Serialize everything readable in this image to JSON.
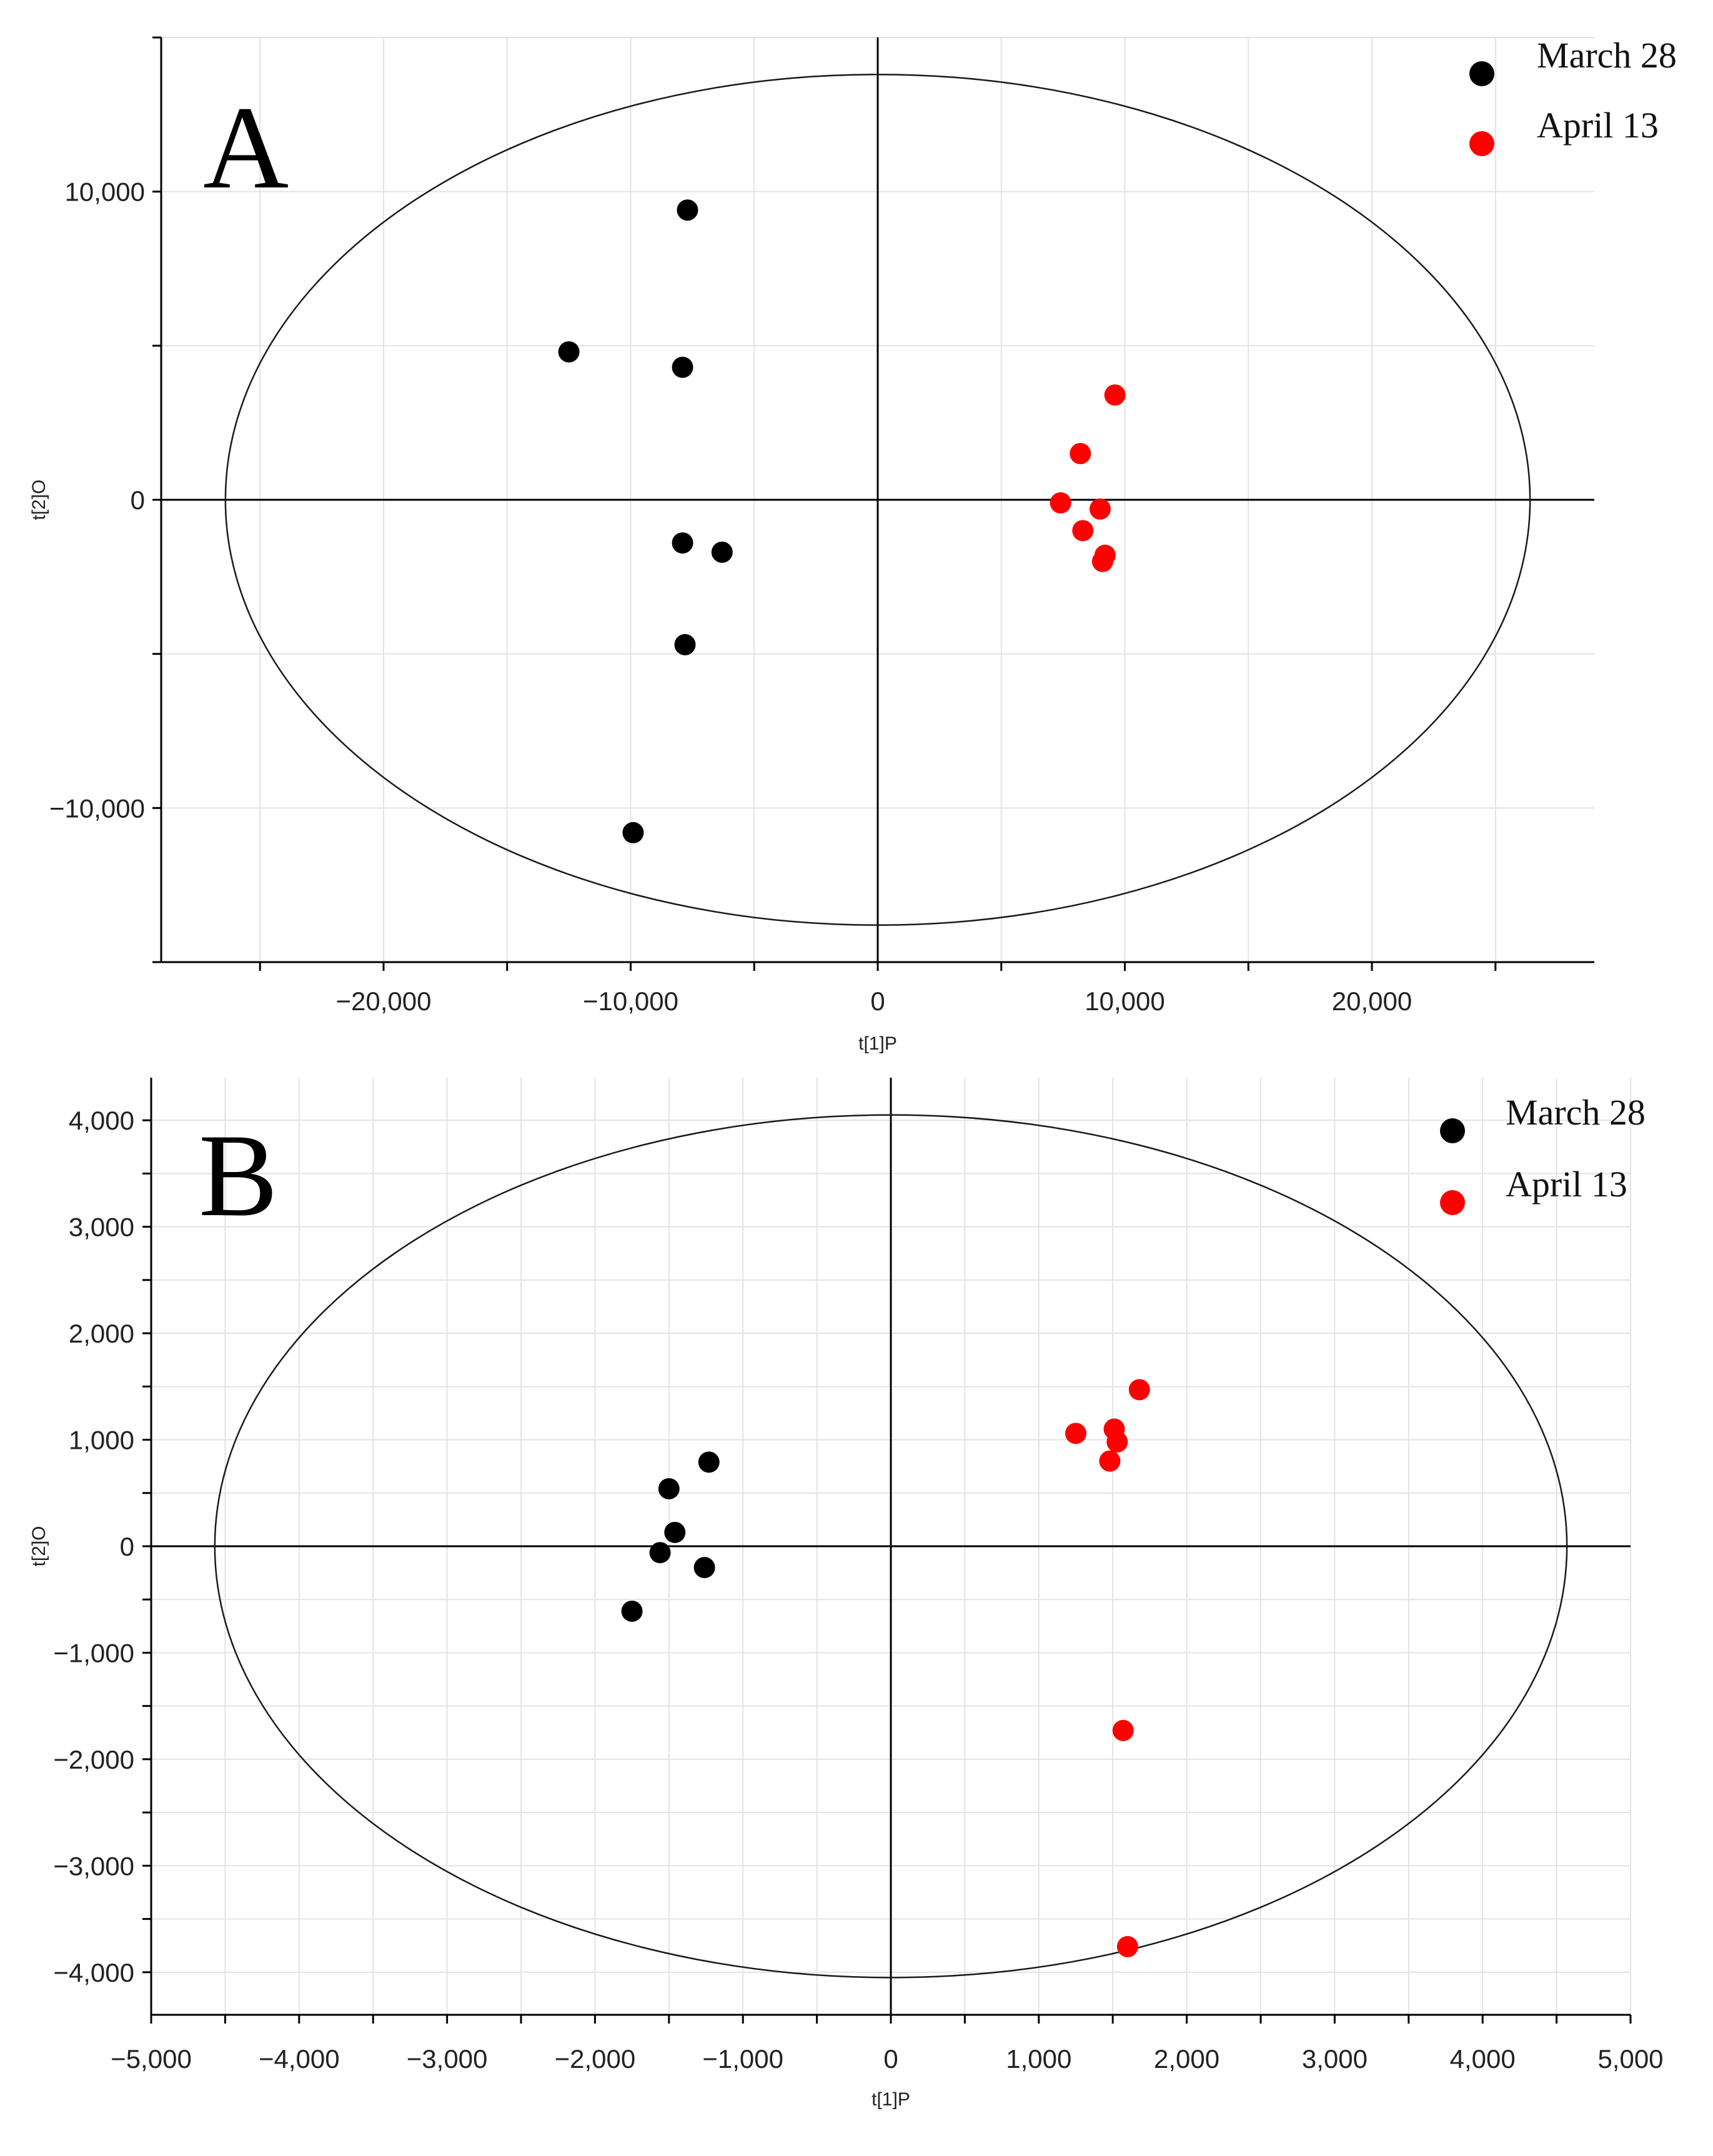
{
  "chart_data": [
    {
      "type": "scatter",
      "panel_label": "A",
      "xlabel": "t[1]P",
      "ylabel": "t[2]O",
      "xlim": [
        -29000,
        29000
      ],
      "ylim": [
        -15000,
        15000
      ],
      "xticks": [
        -20000,
        -10000,
        0,
        10000,
        20000
      ],
      "xtick_labels": [
        "−20,000",
        "−10,000",
        "0",
        "10,000",
        "20,000"
      ],
      "yticks": [
        10000,
        0,
        -10000
      ],
      "ytick_labels": [
        "10,000",
        "0",
        "−10,000"
      ],
      "minor_step": 5000,
      "grid": true,
      "legend_position": "top-right",
      "ellipse": {
        "rx": 26400,
        "ry": 13800
      },
      "series": [
        {
          "name": "March 28",
          "color": "#000000",
          "points": [
            [
              -7700,
              9400
            ],
            [
              -12500,
              4800
            ],
            [
              -7900,
              4300
            ],
            [
              -7900,
              -1400
            ],
            [
              -6300,
              -1700
            ],
            [
              -7800,
              -4700
            ],
            [
              -9900,
              -10800
            ]
          ]
        },
        {
          "name": "April 13",
          "color": "#ff0000",
          "points": [
            [
              9600,
              3400
            ],
            [
              8200,
              1500
            ],
            [
              7400,
              -100
            ],
            [
              9000,
              -300
            ],
            [
              8300,
              -1000
            ],
            [
              9200,
              -1800
            ],
            [
              9100,
              -2000
            ]
          ]
        }
      ]
    },
    {
      "type": "scatter",
      "panel_label": "B",
      "xlabel": "t[1]P",
      "ylabel": "t[2]O",
      "xlim": [
        -5000,
        5000
      ],
      "ylim": [
        -4400,
        4400
      ],
      "xticks": [
        -5000,
        -4000,
        -3000,
        -2000,
        -1000,
        0,
        1000,
        2000,
        3000,
        4000,
        5000
      ],
      "xtick_labels": [
        "−5,000",
        "−4,000",
        "−3,000",
        "−2,000",
        "−1,000",
        "0",
        "1,000",
        "2,000",
        "3,000",
        "4,000",
        "5,000"
      ],
      "yticks": [
        4000,
        3000,
        2000,
        1000,
        0,
        -1000,
        -2000,
        -3000,
        -4000
      ],
      "ytick_labels": [
        "4,000",
        "3,000",
        "2,000",
        "1,000",
        "0",
        "−1,000",
        "−2,000",
        "−3,000",
        "−4,000"
      ],
      "minor_step": 500,
      "grid": true,
      "legend_position": "top-right",
      "ellipse": {
        "rx": 4570,
        "ry": 4050
      },
      "series": [
        {
          "name": "March 28",
          "color": "#000000",
          "points": [
            [
              -1230,
              790
            ],
            [
              -1500,
              540
            ],
            [
              -1460,
              130
            ],
            [
              -1560,
              -60
            ],
            [
              -1260,
              -200
            ],
            [
              -1750,
              -610
            ]
          ]
        },
        {
          "name": "April 13",
          "color": "#ff0000",
          "points": [
            [
              1680,
              1470
            ],
            [
              1250,
              1060
            ],
            [
              1510,
              1100
            ],
            [
              1530,
              980
            ],
            [
              1480,
              800
            ],
            [
              1570,
              -1730
            ],
            [
              1600,
              -3760
            ]
          ]
        }
      ]
    }
  ]
}
